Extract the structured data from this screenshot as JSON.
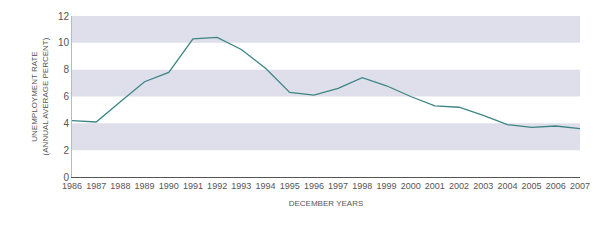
{
  "chart_data": {
    "type": "line",
    "x_label": "DECEMBER YEARS",
    "y_label": "UNEMPLOYMENT RATE\n(ANNUAL AVERAGE PERCENT)",
    "x": [
      1986,
      1987,
      1988,
      1989,
      1990,
      1991,
      1992,
      1993,
      1994,
      1995,
      1996,
      1997,
      1998,
      1999,
      2000,
      2001,
      2002,
      2003,
      2004,
      2005,
      2006,
      2007
    ],
    "values": [
      4.2,
      4.1,
      5.6,
      7.1,
      7.8,
      10.3,
      10.4,
      9.5,
      8.1,
      6.3,
      6.1,
      6.6,
      7.4,
      6.8,
      6.0,
      5.3,
      5.2,
      4.6,
      3.9,
      3.7,
      3.8,
      3.6
    ],
    "color": "#3d8585",
    "xlim": [
      1986,
      2007
    ],
    "xticks": [
      1986,
      1987,
      1988,
      1989,
      1990,
      1991,
      1992,
      1993,
      1994,
      1995,
      1996,
      1997,
      1998,
      1999,
      2000,
      2001,
      2002,
      2003,
      2004,
      2005,
      2006,
      2007
    ],
    "ylim": [
      0,
      12
    ],
    "yticks": [
      0,
      2,
      4,
      6,
      8,
      10,
      12
    ],
    "grid": true
  }
}
